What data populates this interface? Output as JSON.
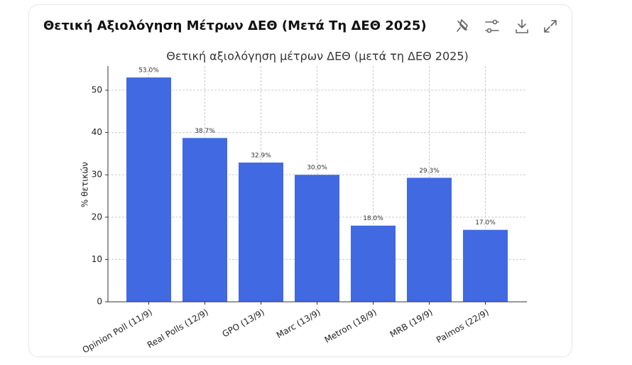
{
  "header": {
    "title": "Θετική Αξιολόγηση Μέτρων ΔΕΘ (Μετά Τη ΔΕΘ 2025)"
  },
  "chart_data": {
    "type": "bar",
    "title": "Θετική αξιολόγηση μέτρων ΔΕΘ (μετά τη ΔΕΘ 2025)",
    "y_label": "% θετικών",
    "categories": [
      "Opinion Poll (11/9)",
      "Real Polls (12/9)",
      "GPO (13/9)",
      "Marc (13/9)",
      "Metron (18/9)",
      "MRB (19/9)",
      "Palmos (22/9)"
    ],
    "values": [
      53.0,
      38.7,
      32.9,
      30.0,
      18.0,
      29.3,
      17.0
    ],
    "value_labels": [
      "53.0%",
      "38.7%",
      "32.9%",
      "30.0%",
      "18.0%",
      "29.3%",
      "17.0%"
    ],
    "color": "#4169e1",
    "ylim": [
      0,
      55.7
    ],
    "yticks": [
      0,
      10,
      20,
      30,
      40,
      50
    ],
    "grid": true
  }
}
